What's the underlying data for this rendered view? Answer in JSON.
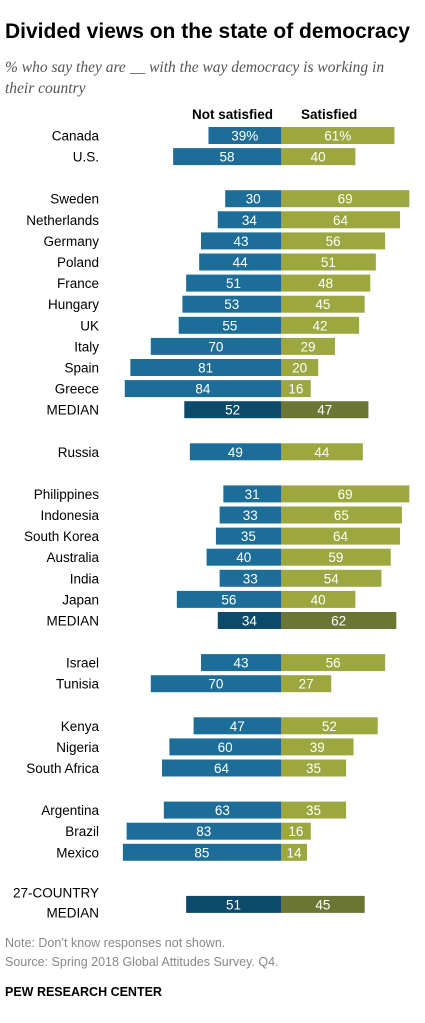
{
  "title": "Divided views on the state of democracy",
  "subtitle": "% who say they are __ with the way democracy is working in their country",
  "note": "Note: Don’t know responses not shown.",
  "source": "Source: Spring 2018 Global Attitudes Survey. Q4.",
  "brand": "PEW RESEARCH CENTER",
  "colors": {
    "not_satisfied": "#1d6d99",
    "satisfied": "#9ca73f",
    "median_not_satisfied": "#0c4a6b",
    "median_satisfied": "#6b7635",
    "bar_text": "#ffffff"
  },
  "chart_data": {
    "type": "bar",
    "orientation": "horizontal-diverging",
    "series": [
      {
        "name": "Not satisfied",
        "direction": "left"
      },
      {
        "name": "Satisfied",
        "direction": "right"
      }
    ],
    "groups": [
      {
        "rows": [
          {
            "label": "Canada",
            "not_satisfied": 39,
            "satisfied": 61,
            "percent": true
          },
          {
            "label": "U.S.",
            "not_satisfied": 58,
            "satisfied": 40
          }
        ]
      },
      {
        "rows": [
          {
            "label": "Sweden",
            "not_satisfied": 30,
            "satisfied": 69
          },
          {
            "label": "Netherlands",
            "not_satisfied": 34,
            "satisfied": 64
          },
          {
            "label": "Germany",
            "not_satisfied": 43,
            "satisfied": 56
          },
          {
            "label": "Poland",
            "not_satisfied": 44,
            "satisfied": 51
          },
          {
            "label": "France",
            "not_satisfied": 51,
            "satisfied": 48
          },
          {
            "label": "Hungary",
            "not_satisfied": 53,
            "satisfied": 45
          },
          {
            "label": "UK",
            "not_satisfied": 55,
            "satisfied": 42
          },
          {
            "label": "Italy",
            "not_satisfied": 70,
            "satisfied": 29
          },
          {
            "label": "Spain",
            "not_satisfied": 81,
            "satisfied": 20
          },
          {
            "label": "Greece",
            "not_satisfied": 84,
            "satisfied": 16
          },
          {
            "label": "MEDIAN",
            "not_satisfied": 52,
            "satisfied": 47,
            "median": true
          }
        ]
      },
      {
        "rows": [
          {
            "label": "Russia",
            "not_satisfied": 49,
            "satisfied": 44
          }
        ]
      },
      {
        "rows": [
          {
            "label": "Philippines",
            "not_satisfied": 31,
            "satisfied": 69
          },
          {
            "label": "Indonesia",
            "not_satisfied": 33,
            "satisfied": 65
          },
          {
            "label": "South Korea",
            "not_satisfied": 35,
            "satisfied": 64
          },
          {
            "label": "Australia",
            "not_satisfied": 40,
            "satisfied": 59
          },
          {
            "label": "India",
            "not_satisfied": 33,
            "satisfied": 54
          },
          {
            "label": "Japan",
            "not_satisfied": 56,
            "satisfied": 40
          },
          {
            "label": "MEDIAN",
            "not_satisfied": 34,
            "satisfied": 62,
            "median": true
          }
        ]
      },
      {
        "rows": [
          {
            "label": "Israel",
            "not_satisfied": 43,
            "satisfied": 56
          },
          {
            "label": "Tunisia",
            "not_satisfied": 70,
            "satisfied": 27
          }
        ]
      },
      {
        "rows": [
          {
            "label": "Kenya",
            "not_satisfied": 47,
            "satisfied": 52
          },
          {
            "label": "Nigeria",
            "not_satisfied": 60,
            "satisfied": 39
          },
          {
            "label": "South Africa",
            "not_satisfied": 64,
            "satisfied": 35
          }
        ]
      },
      {
        "rows": [
          {
            "label": "Argentina",
            "not_satisfied": 63,
            "satisfied": 35
          },
          {
            "label": "Brazil",
            "not_satisfied": 83,
            "satisfied": 16
          },
          {
            "label": "Mexico",
            "not_satisfied": 85,
            "satisfied": 14
          }
        ]
      },
      {
        "rows": [
          {
            "label": "27-COUNTRY MEDIAN",
            "label_lines": [
              "27-COUNTRY",
              "MEDIAN"
            ],
            "not_satisfied": 51,
            "satisfied": 45,
            "median": true
          }
        ]
      }
    ]
  }
}
